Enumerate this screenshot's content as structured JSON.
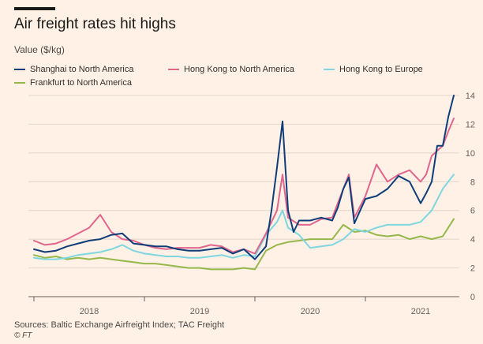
{
  "title": "Air freight rates hit highs",
  "subtitle": "Value ($/kg)",
  "source": "Sources: Baltic Exchange Airfreight Index; TAC Freight",
  "credit": "© FT",
  "colors": {
    "background": "#fff1e5",
    "grid": "#e0d6cc",
    "axis": "#66605c",
    "shanghai_na": "#0f3d7a",
    "hk_na": "#e0668d",
    "hk_eu": "#7fd6e0",
    "frankfurt_na": "#96b84a"
  },
  "chart_data": {
    "type": "line",
    "title": "Air freight rates hit highs",
    "ylabel": "Value ($/kg)",
    "xlabel": "",
    "ylim": [
      0,
      14
    ],
    "yticks": [
      0,
      2,
      4,
      6,
      8,
      10,
      12,
      14
    ],
    "xlim": [
      2017.95,
      2021.85
    ],
    "xtick_labels": [
      "2018",
      "2019",
      "2020",
      "2021"
    ],
    "xtick_positions": [
      2018.5,
      2019.5,
      2020.5,
      2021.5
    ],
    "year_boundaries": [
      2018,
      2019,
      2020,
      2021
    ],
    "grid": true,
    "legend_position": "top-left",
    "series": [
      {
        "name": "Shanghai to North America",
        "color": "#0f3d7a",
        "x": [
          2018.0,
          2018.1,
          2018.2,
          2018.3,
          2018.4,
          2018.5,
          2018.6,
          2018.7,
          2018.8,
          2018.9,
          2019.0,
          2019.1,
          2019.2,
          2019.3,
          2019.4,
          2019.5,
          2019.6,
          2019.7,
          2019.8,
          2019.9,
          2020.0,
          2020.1,
          2020.15,
          2020.2,
          2020.25,
          2020.3,
          2020.35,
          2020.4,
          2020.5,
          2020.6,
          2020.7,
          2020.75,
          2020.8,
          2020.85,
          2020.9,
          2021.0,
          2021.1,
          2021.2,
          2021.3,
          2021.4,
          2021.5,
          2021.55,
          2021.6,
          2021.65,
          2021.7,
          2021.75,
          2021.8
        ],
        "values": [
          3.3,
          3.1,
          3.2,
          3.5,
          3.7,
          3.9,
          4.0,
          4.3,
          4.4,
          3.7,
          3.6,
          3.5,
          3.5,
          3.3,
          3.2,
          3.2,
          3.3,
          3.4,
          3.0,
          3.3,
          2.6,
          3.5,
          6.0,
          9.0,
          12.2,
          6.0,
          4.5,
          5.3,
          5.3,
          5.5,
          5.3,
          6.2,
          7.5,
          8.3,
          5.1,
          6.8,
          7.0,
          7.5,
          8.4,
          8.0,
          6.5,
          7.2,
          8.0,
          10.5,
          10.5,
          12.5,
          14.0
        ]
      },
      {
        "name": "Hong Kong to North America",
        "color": "#e0668d",
        "x": [
          2018.0,
          2018.1,
          2018.2,
          2018.3,
          2018.4,
          2018.5,
          2018.6,
          2018.7,
          2018.8,
          2018.9,
          2019.0,
          2019.1,
          2019.2,
          2019.3,
          2019.4,
          2019.5,
          2019.6,
          2019.7,
          2019.8,
          2019.9,
          2020.0,
          2020.1,
          2020.2,
          2020.25,
          2020.3,
          2020.4,
          2020.5,
          2020.6,
          2020.7,
          2020.8,
          2020.85,
          2020.9,
          2021.0,
          2021.1,
          2021.2,
          2021.3,
          2021.4,
          2021.5,
          2021.55,
          2021.6,
          2021.7,
          2021.75,
          2021.8
        ],
        "values": [
          3.9,
          3.6,
          3.7,
          4.0,
          4.4,
          4.8,
          5.7,
          4.5,
          4.0,
          3.9,
          3.6,
          3.4,
          3.3,
          3.4,
          3.4,
          3.4,
          3.6,
          3.5,
          3.1,
          3.3,
          3.0,
          4.4,
          6.0,
          8.5,
          5.5,
          5.0,
          5.0,
          5.4,
          5.5,
          7.5,
          8.5,
          5.5,
          7.0,
          9.2,
          8.0,
          8.5,
          8.8,
          8.0,
          8.5,
          9.8,
          10.5,
          11.5,
          12.4
        ]
      },
      {
        "name": "Hong Kong to Europe",
        "color": "#7fd6e0",
        "x": [
          2018.0,
          2018.1,
          2018.2,
          2018.3,
          2018.4,
          2018.5,
          2018.6,
          2018.7,
          2018.8,
          2018.9,
          2019.0,
          2019.1,
          2019.2,
          2019.3,
          2019.4,
          2019.5,
          2019.6,
          2019.7,
          2019.8,
          2019.9,
          2020.0,
          2020.1,
          2020.2,
          2020.25,
          2020.3,
          2020.4,
          2020.5,
          2020.6,
          2020.7,
          2020.8,
          2020.9,
          2021.0,
          2021.1,
          2021.2,
          2021.3,
          2021.4,
          2021.5,
          2021.6,
          2021.7,
          2021.8
        ],
        "values": [
          2.7,
          2.6,
          2.6,
          2.7,
          2.9,
          3.0,
          3.1,
          3.3,
          3.6,
          3.2,
          3.0,
          2.9,
          2.8,
          2.8,
          2.7,
          2.7,
          2.8,
          2.9,
          2.7,
          2.9,
          2.8,
          4.3,
          5.2,
          6.0,
          4.8,
          4.3,
          3.4,
          3.5,
          3.6,
          4.0,
          4.7,
          4.5,
          4.8,
          5.0,
          5.0,
          5.0,
          5.2,
          6.0,
          7.5,
          8.5
        ]
      },
      {
        "name": "Frankfurt to North America",
        "color": "#96b84a",
        "x": [
          2018.0,
          2018.1,
          2018.2,
          2018.3,
          2018.4,
          2018.5,
          2018.6,
          2018.7,
          2018.8,
          2018.9,
          2019.0,
          2019.1,
          2019.2,
          2019.3,
          2019.4,
          2019.5,
          2019.6,
          2019.7,
          2019.8,
          2019.9,
          2020.0,
          2020.1,
          2020.2,
          2020.3,
          2020.4,
          2020.5,
          2020.6,
          2020.7,
          2020.8,
          2020.9,
          2021.0,
          2021.1,
          2021.2,
          2021.3,
          2021.4,
          2021.5,
          2021.6,
          2021.7,
          2021.8
        ],
        "values": [
          2.9,
          2.7,
          2.8,
          2.6,
          2.7,
          2.6,
          2.7,
          2.6,
          2.5,
          2.4,
          2.3,
          2.3,
          2.2,
          2.1,
          2.0,
          2.0,
          1.9,
          1.9,
          1.9,
          2.0,
          1.9,
          3.2,
          3.6,
          3.8,
          3.9,
          4.0,
          4.0,
          4.0,
          5.0,
          4.5,
          4.6,
          4.3,
          4.2,
          4.3,
          4.0,
          4.2,
          4.0,
          4.2,
          5.4
        ]
      }
    ]
  }
}
